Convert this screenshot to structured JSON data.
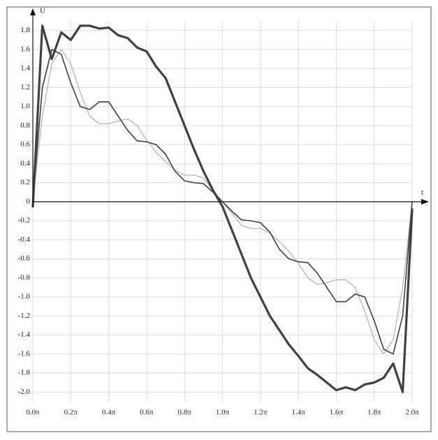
{
  "chart_data": {
    "type": "line",
    "x_label": "t",
    "y_label": "U",
    "x": [
      0,
      0.05,
      0.1,
      0.15,
      0.2,
      0.25,
      0.3,
      0.35,
      0.4,
      0.45,
      0.5,
      0.55,
      0.6,
      0.65,
      0.7,
      0.75,
      0.8,
      0.85,
      0.9,
      0.95,
      1.0,
      1.05,
      1.1,
      1.15,
      1.2,
      1.25,
      1.3,
      1.35,
      1.4,
      1.45,
      1.5,
      1.55,
      1.6,
      1.65,
      1.7,
      1.75,
      1.8,
      1.85,
      1.9,
      1.95,
      2.0
    ],
    "series": [
      {
        "color": "#b0b0b0",
        "width": 1.2,
        "values": [
          0,
          0.9,
          1.45,
          1.6,
          1.45,
          1.15,
          0.9,
          0.82,
          0.82,
          0.85,
          0.87,
          0.8,
          0.65,
          0.52,
          0.42,
          0.33,
          0.28,
          0.28,
          0.25,
          0.12,
          0,
          -0.12,
          -0.25,
          -0.28,
          -0.28,
          -0.33,
          -0.42,
          -0.52,
          -0.65,
          -0.8,
          -0.87,
          -0.85,
          -0.82,
          -0.82,
          -0.9,
          -1.15,
          -1.45,
          -1.6,
          -1.45,
          -0.9,
          0
        ]
      },
      {
        "color": "#404040",
        "width": 1.6,
        "values": [
          0,
          1.2,
          1.6,
          1.55,
          1.25,
          1.0,
          0.97,
          1.05,
          1.05,
          0.9,
          0.75,
          0.64,
          0.63,
          0.6,
          0.5,
          0.32,
          0.22,
          0.2,
          0.19,
          0.1,
          0,
          -0.1,
          -0.19,
          -0.2,
          -0.22,
          -0.32,
          -0.5,
          -0.6,
          -0.63,
          -0.64,
          -0.75,
          -0.9,
          -1.05,
          -1.05,
          -0.97,
          -1.0,
          -1.25,
          -1.55,
          -1.6,
          -1.2,
          0
        ]
      },
      {
        "color": "#404040",
        "width": 3.2,
        "values": [
          -0.05,
          1.85,
          1.5,
          1.78,
          1.7,
          1.85,
          1.85,
          1.82,
          1.83,
          1.75,
          1.72,
          1.62,
          1.58,
          1.42,
          1.3,
          1.05,
          0.8,
          0.55,
          0.32,
          0.12,
          -0.05,
          -0.3,
          -0.55,
          -0.8,
          -1.0,
          -1.2,
          -1.35,
          -1.5,
          -1.62,
          -1.75,
          -1.82,
          -1.9,
          -1.98,
          -1.95,
          -1.98,
          -1.92,
          -1.9,
          -1.85,
          -1.7,
          -2.0,
          -0.08
        ]
      }
    ],
    "xlim": [
      0,
      2.0
    ],
    "xticks": [
      {
        "value": 0,
        "label": "0.0π"
      },
      {
        "value": 0.2,
        "label": "0.2π"
      },
      {
        "value": 0.4,
        "label": "0.4π"
      },
      {
        "value": 0.6,
        "label": "0.6π"
      },
      {
        "value": 0.8,
        "label": "0.8π"
      },
      {
        "value": 1.0,
        "label": "1.0π"
      },
      {
        "value": 1.2,
        "label": "1.2π"
      },
      {
        "value": 1.4,
        "label": "1.4π"
      },
      {
        "value": 1.6,
        "label": "1.6π"
      },
      {
        "value": 1.8,
        "label": "1.8π"
      },
      {
        "value": 2.0,
        "label": "2.0π"
      }
    ],
    "ylim": [
      -2.1,
      1.9
    ],
    "yticks": [
      1.8,
      1.6,
      1.4,
      1.2,
      {
        "value": 1,
        "label": "1.0"
      },
      0.8,
      0.6,
      0.4,
      0.2,
      0,
      -0.2,
      -0.4,
      -0.6,
      -0.8,
      {
        "value": -1,
        "label": "-1.0"
      },
      -1.2,
      -1.4,
      -1.6,
      -1.8,
      {
        "value": -2,
        "label": "-2.0"
      }
    ],
    "grid": true
  }
}
